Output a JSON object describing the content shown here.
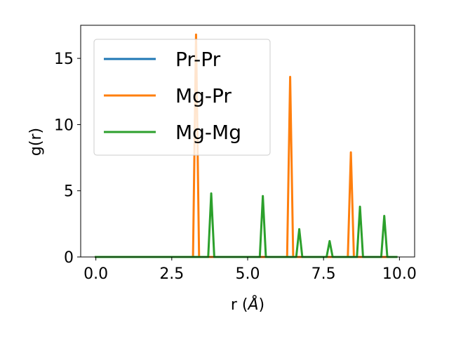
{
  "chart_data": {
    "type": "line",
    "xlabel_prefix": "r (",
    "xlabel_unit": "Å",
    "xlabel_suffix": ")",
    "ylabel": "g(r)",
    "xlim": [
      -0.5,
      10.5
    ],
    "ylim": [
      0,
      17.5
    ],
    "xticks": [
      0.0,
      2.5,
      5.0,
      7.5,
      10.0
    ],
    "xtick_labels": [
      "0.0",
      "2.5",
      "5.0",
      "7.5",
      "10.0"
    ],
    "yticks": [
      0,
      5,
      10,
      15
    ],
    "ytick_labels": [
      "0",
      "5",
      "10",
      "15"
    ],
    "grid": false,
    "legend_position": "upper-left",
    "series": [
      {
        "name": "Pr-Pr",
        "color": "#1f77b4",
        "x": [
          0.0,
          9.9
        ],
        "y": [
          0,
          0
        ]
      },
      {
        "name": "Mg-Pr",
        "color": "#ff7f0e",
        "x": [
          0.0,
          3.2,
          3.3,
          3.4,
          6.3,
          6.4,
          6.5,
          8.3,
          8.4,
          8.5,
          9.9
        ],
        "y": [
          0,
          0,
          16.8,
          0,
          0,
          13.6,
          0,
          0,
          7.9,
          0,
          0
        ]
      },
      {
        "name": "Mg-Mg",
        "color": "#2ca02c",
        "x": [
          0.0,
          3.7,
          3.8,
          3.9,
          5.4,
          5.5,
          5.6,
          6.6,
          6.7,
          6.8,
          7.6,
          7.7,
          7.8,
          8.6,
          8.7,
          8.8,
          9.4,
          9.5,
          9.6,
          9.9
        ],
        "y": [
          0,
          0,
          4.8,
          0,
          0,
          4.6,
          0,
          0,
          2.1,
          0,
          0,
          1.2,
          0,
          0,
          3.8,
          0,
          0,
          3.1,
          0,
          0
        ]
      }
    ]
  }
}
